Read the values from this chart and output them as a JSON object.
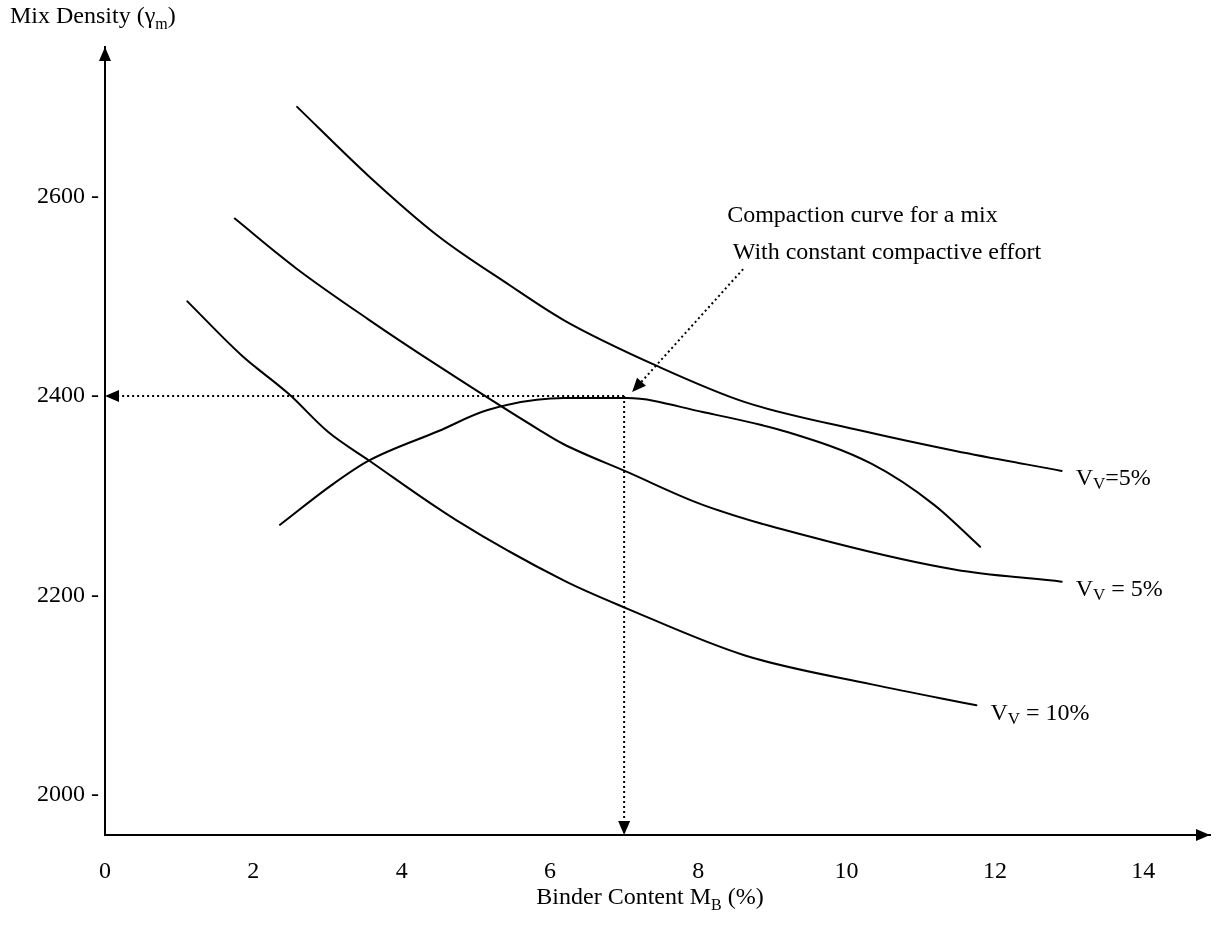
{
  "chart_data": {
    "type": "line",
    "xlabel": "Binder Content M$_{B}$ (%)",
    "ylabel": "Mix Density (γ$_{m}$)",
    "xlim": [
      0,
      14.9
    ],
    "ylim": [
      1960,
      2750
    ],
    "xticks": [
      0,
      2,
      4,
      6,
      8,
      10,
      12,
      14
    ],
    "yticks": [
      {
        "value": 2000,
        "label": "2000 -"
      },
      {
        "value": 2200,
        "label": "2200 -"
      },
      {
        "value": 2400,
        "label": "2400 -"
      },
      {
        "value": 2600,
        "label": "2600 -"
      }
    ],
    "grid": false,
    "legend": false,
    "marker": "none",
    "line_style": "solid",
    "series": [
      {
        "name": "V$_{V}$=5%",
        "color": "#000000",
        "x": [
          2.59,
          3.55,
          4.5,
          5.42,
          6.19,
          7.48,
          8.63,
          10.22,
          11.47,
          12.9
        ],
        "values": [
          2690,
          2621,
          2560,
          2513,
          2476,
          2429,
          2394,
          2365,
          2345,
          2325
        ]
      },
      {
        "name": "V$_{V}$ = 5%",
        "color": "#000000",
        "x": [
          1.75,
          2.58,
          3.55,
          4.5,
          5.88,
          6.18,
          7.04,
          8.06,
          9.77,
          11.47,
          12.9
        ],
        "values": [
          2578,
          2528,
          2477,
          2430,
          2365,
          2352,
          2324,
          2291,
          2254,
          2226,
          2214
        ]
      },
      {
        "name": "V$_{V}$ = 10%",
        "color": "#000000",
        "x": [
          1.11,
          1.84,
          2.48,
          3.01,
          3.55,
          4.73,
          6.19,
          7.04,
          8.63,
          10.34,
          11.75
        ],
        "values": [
          2495,
          2441,
          2402,
          2364,
          2336,
          2276,
          2215,
          2187,
          2140,
          2111,
          2090
        ]
      },
      {
        "color": "#000000",
        "x": [
          2.36,
          3.06,
          3.55,
          4.5,
          5.16,
          6.19,
          7.04,
          8.06,
          9.2,
          10.34,
          11.18,
          11.8
        ],
        "values": [
          2271,
          2311,
          2335,
          2365,
          2386,
          2398,
          2398,
          2384,
          2364,
          2332,
          2291,
          2249
        ]
      }
    ],
    "ref_lines": [
      {
        "axis": "x",
        "value": 7,
        "line_style": "dotted"
      },
      {
        "axis": "y",
        "value": 2400,
        "line_style": "dotted"
      }
    ],
    "annotations": [
      "Compaction curve for a mix\n With constant compactive effort"
    ]
  }
}
